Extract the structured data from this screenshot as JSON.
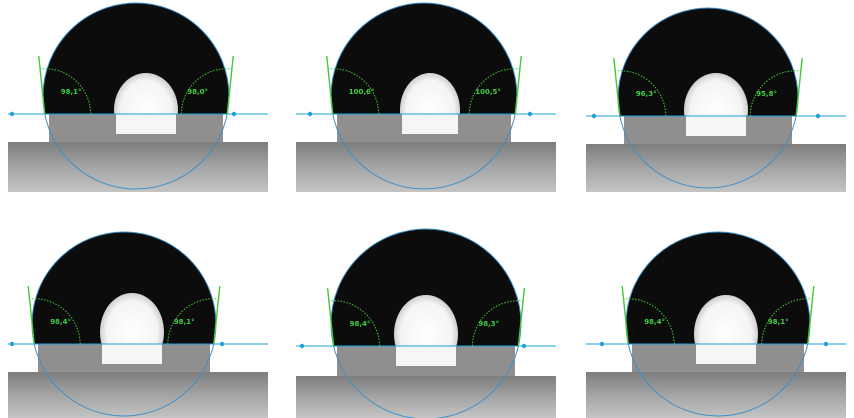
{
  "panels": [
    {
      "left_angle": "98,1°",
      "right_angle": "98,0°"
    },
    {
      "left_angle": "100,6°",
      "right_angle": "100,5°"
    },
    {
      "left_angle": "96,3°",
      "right_angle": "95,8°"
    },
    {
      "left_angle": "98,4°",
      "right_angle": "98,1°"
    },
    {
      "left_angle": "98,4°",
      "right_angle": "98,3°"
    },
    {
      "left_angle": "98,4°",
      "right_angle": "98,1°"
    }
  ],
  "colors": {
    "drop": "#0c0c0c",
    "baseline": "#1f9fd8",
    "fit_circle": "#3d8fc9",
    "tangent": "#46c83c",
    "angle_label": "#3fd13f",
    "substrate": "#9a9a9a"
  }
}
